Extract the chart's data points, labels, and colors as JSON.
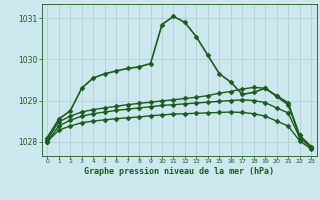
{
  "title": "Graphe pression niveau de la mer (hPa)",
  "background_color": "#cce8ee",
  "grid_color": "#aacccc",
  "line_color": "#1a5c1a",
  "xlim": [
    -0.5,
    23.5
  ],
  "ylim": [
    1027.65,
    1031.35
  ],
  "yticks": [
    1028,
    1029,
    1030,
    1031
  ],
  "xticks": [
    0,
    1,
    2,
    3,
    4,
    5,
    6,
    7,
    8,
    9,
    10,
    11,
    12,
    13,
    14,
    15,
    16,
    17,
    18,
    19,
    20,
    21,
    22,
    23
  ],
  "series": [
    {
      "x": [
        0,
        1,
        2,
        3,
        4,
        5,
        6,
        7,
        8,
        9,
        10,
        11,
        12,
        13,
        14,
        15,
        16,
        17,
        18,
        19,
        20,
        21,
        22,
        23
      ],
      "y": [
        1028.1,
        1028.55,
        1028.75,
        1029.3,
        1029.55,
        1029.65,
        1029.72,
        1029.78,
        1029.82,
        1029.9,
        1030.85,
        1031.05,
        1030.9,
        1030.55,
        1030.1,
        1029.65,
        1029.45,
        1029.15,
        1029.2,
        1029.3,
        1029.1,
        1028.9,
        1028.15,
        1027.88
      ],
      "linewidth": 1.2,
      "markersize": 2.5
    },
    {
      "x": [
        0,
        1,
        2,
        3,
        4,
        5,
        6,
        7,
        8,
        9,
        10,
        11,
        12,
        13,
        14,
        15,
        16,
        17,
        18,
        19,
        20,
        21,
        22,
        23
      ],
      "y": [
        1028.05,
        1028.48,
        1028.62,
        1028.72,
        1028.78,
        1028.82,
        1028.86,
        1028.9,
        1028.93,
        1028.96,
        1028.99,
        1029.02,
        1029.05,
        1029.08,
        1029.12,
        1029.18,
        1029.22,
        1029.28,
        1029.32,
        1029.3,
        1029.12,
        1028.95,
        1028.15,
        1027.87
      ],
      "linewidth": 1.0,
      "markersize": 2.5
    },
    {
      "x": [
        0,
        1,
        2,
        3,
        4,
        5,
        6,
        7,
        8,
        9,
        10,
        11,
        12,
        13,
        14,
        15,
        16,
        17,
        18,
        19,
        20,
        21,
        22,
        23
      ],
      "y": [
        1028.0,
        1028.38,
        1028.52,
        1028.62,
        1028.68,
        1028.72,
        1028.76,
        1028.79,
        1028.82,
        1028.85,
        1028.88,
        1028.9,
        1028.92,
        1028.94,
        1028.96,
        1028.98,
        1029.0,
        1029.02,
        1029.0,
        1028.95,
        1028.82,
        1028.7,
        1028.1,
        1027.85
      ],
      "linewidth": 1.0,
      "markersize": 2.5
    },
    {
      "x": [
        0,
        1,
        2,
        3,
        4,
        5,
        6,
        7,
        8,
        9,
        10,
        11,
        12,
        13,
        14,
        15,
        16,
        17,
        18,
        19,
        20,
        21,
        22,
        23
      ],
      "y": [
        1028.0,
        1028.28,
        1028.38,
        1028.46,
        1028.5,
        1028.53,
        1028.56,
        1028.58,
        1028.6,
        1028.63,
        1028.65,
        1028.67,
        1028.68,
        1028.69,
        1028.7,
        1028.71,
        1028.72,
        1028.71,
        1028.68,
        1028.62,
        1028.5,
        1028.38,
        1028.02,
        1027.82
      ],
      "linewidth": 1.0,
      "markersize": 2.5
    }
  ]
}
